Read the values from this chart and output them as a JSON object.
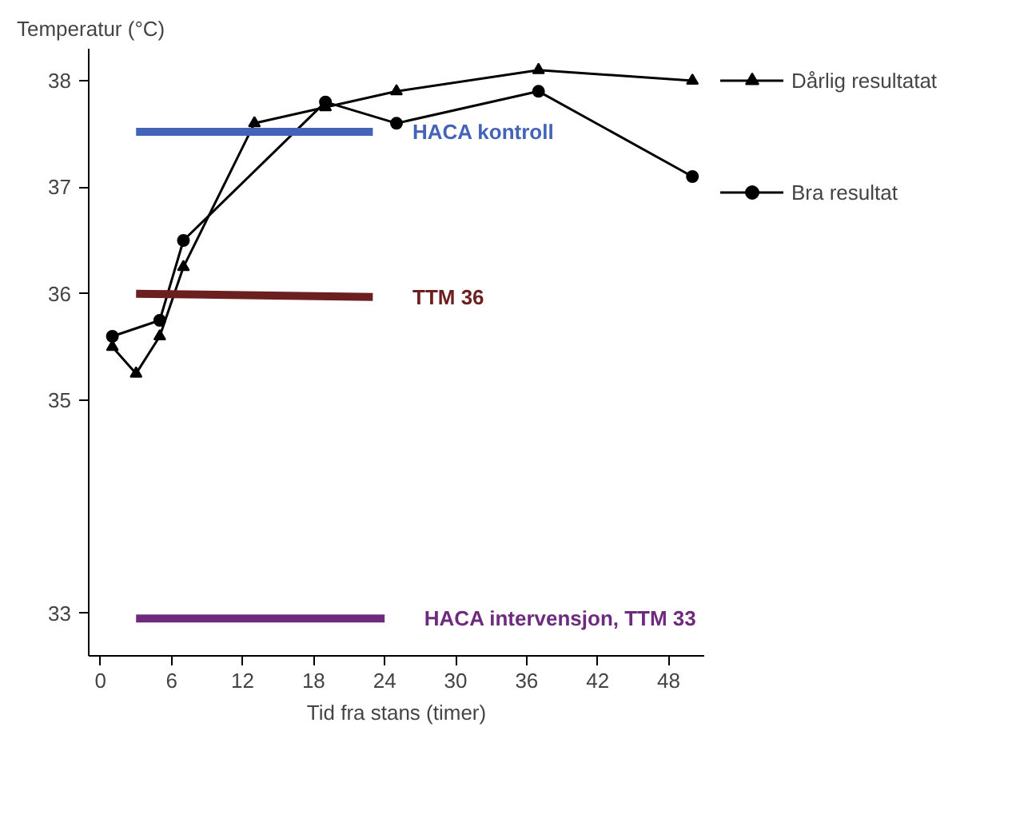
{
  "chart_data": {
    "type": "line",
    "ylabel": "Temperatur (°C)",
    "xlabel": "Tid fra stans (timer)",
    "xlim": [
      -1,
      51
    ],
    "xticks": [
      0,
      6,
      12,
      18,
      24,
      30,
      36,
      42,
      48
    ],
    "ylim": [
      32.6,
      38.3
    ],
    "yticks": [
      33,
      35,
      36,
      37,
      38
    ],
    "legend": "right",
    "grid": false,
    "series": [
      {
        "name": "Dårlig resultatat",
        "color": "#000000",
        "marker": "triangle",
        "x": [
          1,
          3,
          5,
          7,
          13,
          19,
          25,
          37,
          50
        ],
        "values": [
          35.5,
          35.25,
          35.6,
          36.25,
          37.6,
          37.75,
          37.9,
          38.1,
          38.0
        ]
      },
      {
        "name": "Bra resultat",
        "color": "#000000",
        "marker": "circle",
        "x": [
          1,
          5,
          7,
          19,
          25,
          37,
          50
        ],
        "values": [
          35.6,
          35.75,
          36.5,
          37.8,
          37.6,
          37.9,
          37.1
        ]
      },
      {
        "name": "HACA kontroll",
        "color": "#4263b8",
        "marker": "none",
        "x": [
          3,
          23
        ],
        "values": [
          37.52,
          37.52
        ]
      },
      {
        "name": "TTM 36",
        "color": "#6b1f1f",
        "marker": "none",
        "x": [
          3,
          23
        ],
        "values": [
          36.0,
          35.97
        ]
      },
      {
        "name": "HACA intervensjon, TTM 33",
        "color": "#6e2b7e",
        "marker": "none",
        "x": [
          3,
          24
        ],
        "values": [
          32.95,
          32.95
        ]
      }
    ]
  }
}
